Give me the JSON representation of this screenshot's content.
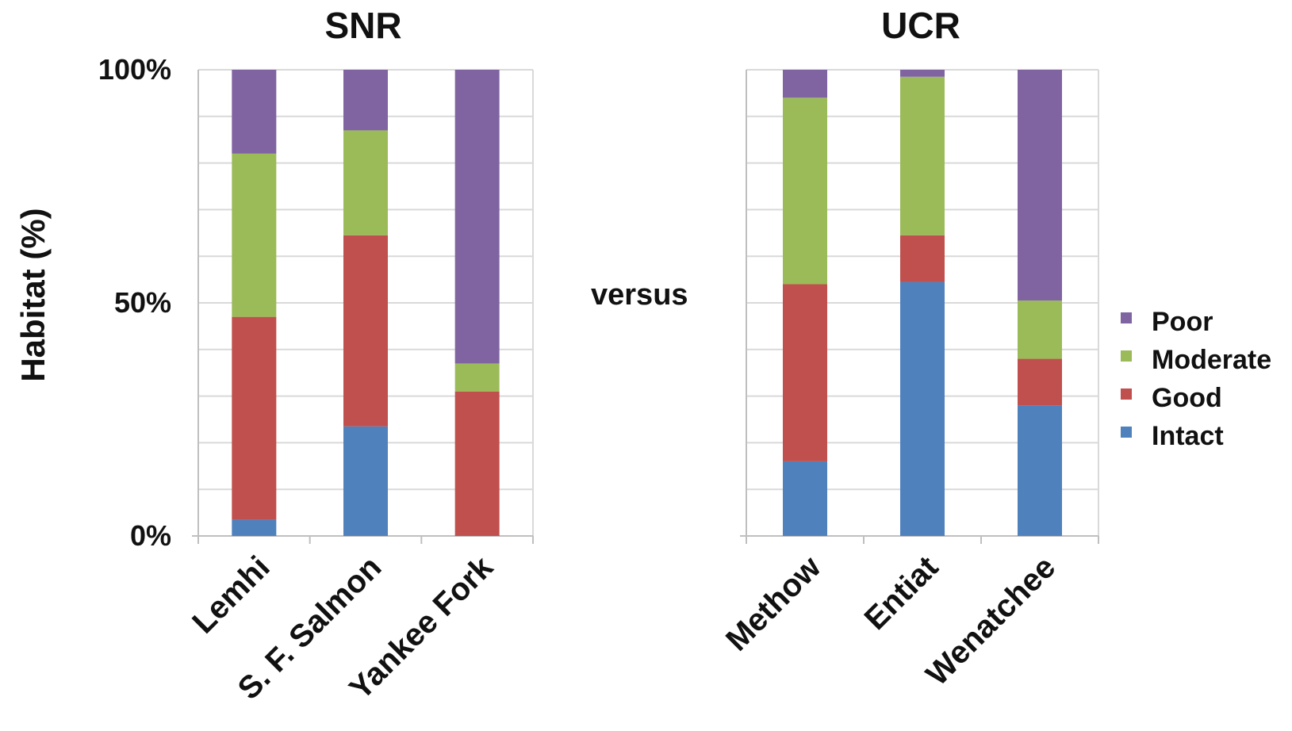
{
  "figure": {
    "ylabel": "Habitat (%)",
    "versus": "versus"
  },
  "legend": {
    "placement": "right",
    "entries": [
      "Poor",
      "Moderate",
      "Good",
      "Intact"
    ]
  },
  "colors": {
    "Intact": "#4f81bd",
    "Good": "#c0504d",
    "Moderate": "#9bbb59",
    "Poor": "#8064a2"
  },
  "chart_data": [
    {
      "type": "bar",
      "stacked": true,
      "title": "SNR",
      "ylabel": "Habitat (%)",
      "ylim": [
        0,
        100
      ],
      "yticks": [
        {
          "value": 0,
          "label": "0%"
        },
        {
          "value": 50,
          "label": "50%"
        },
        {
          "value": 100,
          "label": "100%"
        }
      ],
      "grid": true,
      "categories": [
        "Lemhi",
        "S. F. Salmon",
        "Yankee Fork"
      ],
      "series": [
        {
          "name": "Intact",
          "values": [
            3.5,
            23.5,
            0
          ]
        },
        {
          "name": "Good",
          "values": [
            43.5,
            41,
            31
          ]
        },
        {
          "name": "Moderate",
          "values": [
            35,
            22.5,
            6
          ]
        },
        {
          "name": "Poor",
          "values": [
            18,
            13,
            63
          ]
        }
      ]
    },
    {
      "type": "bar",
      "stacked": true,
      "title": "UCR",
      "ylim": [
        0,
        100
      ],
      "grid": true,
      "categories": [
        "Methow",
        "Entiat",
        "Wenatchee"
      ],
      "series": [
        {
          "name": "Intact",
          "values": [
            16,
            54.5,
            28
          ]
        },
        {
          "name": "Good",
          "values": [
            38,
            10,
            10
          ]
        },
        {
          "name": "Moderate",
          "values": [
            40,
            34,
            12.5
          ]
        },
        {
          "name": "Poor",
          "values": [
            6,
            1.5,
            49.5
          ]
        }
      ]
    }
  ]
}
